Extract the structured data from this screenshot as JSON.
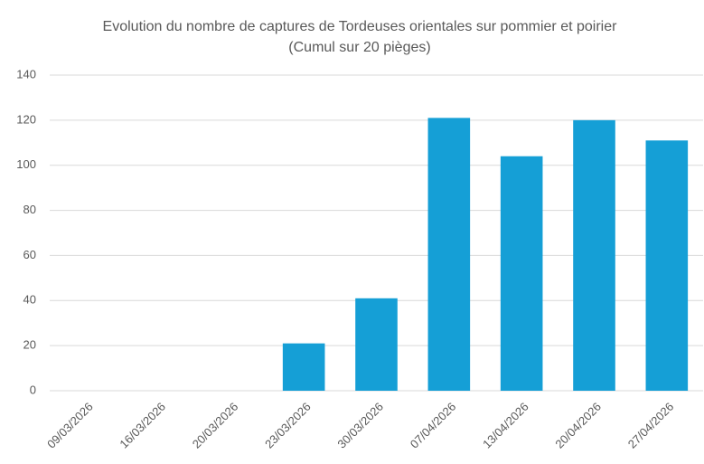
{
  "chart_data": {
    "type": "bar",
    "title": "Evolution du nombre de captures de Tordeuses orientales sur pommier et poirier (Cumul sur 20 pièges)",
    "categories": [
      "09/03/2026",
      "16/03/2026",
      "20/03/2026",
      "23/03/2026",
      "30/03/2026",
      "07/04/2026",
      "13/04/2026",
      "20/04/2026",
      "27/04/2026"
    ],
    "values": [
      0,
      0,
      0,
      21,
      41,
      121,
      104,
      120,
      111
    ],
    "color": "#159fd6",
    "ylim": [
      0,
      140
    ],
    "yticks": [
      0,
      20,
      40,
      60,
      80,
      100,
      120,
      140
    ],
    "grid": true
  }
}
